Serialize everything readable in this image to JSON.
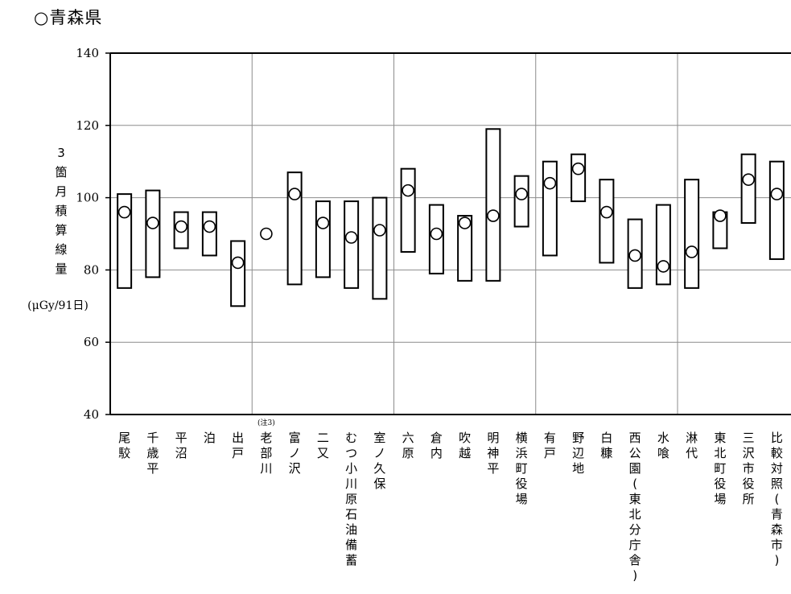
{
  "page_title": "○青森県",
  "chart_data": {
    "type": "range-bar",
    "ylim": [
      40,
      140
    ],
    "yticks": [
      "40",
      "60",
      "80",
      "100",
      "120",
      "140"
    ],
    "ylabel": "3箇月積算線量",
    "yunit": "(μGy/91日)",
    "grid": true,
    "categories": [
      "尾駮",
      "千歳平",
      "平沼",
      "泊",
      "出戸",
      "老部川",
      "富ノ沢",
      "二又",
      "むつ小川原石油備蓄",
      "室ノ久保",
      "六原",
      "倉内",
      "吹越",
      "明神平",
      "横浜町役場",
      "有戸",
      "野辺地",
      "白糠",
      "西公園(東北分庁舎)",
      "水喰",
      "淋代",
      "東北町役場",
      "三沢市役所",
      "比較対照(青森市)"
    ],
    "category_note": {
      "index": 5,
      "text": "(注3)"
    },
    "series": [
      {
        "values": [
          96,
          93,
          92,
          92,
          82,
          90,
          101,
          93,
          89,
          91,
          102,
          90,
          93,
          95,
          101,
          104,
          108,
          96,
          84,
          81,
          85,
          95,
          105,
          101
        ]
      },
      {
        "min": [
          75,
          78,
          86,
          84,
          70,
          null,
          76,
          78,
          75,
          72,
          85,
          79,
          77,
          77,
          92,
          84,
          99,
          82,
          75,
          76,
          75,
          86,
          93,
          83
        ],
        "max": [
          101,
          102,
          96,
          96,
          88,
          null,
          107,
          99,
          99,
          100,
          108,
          98,
          95,
          119,
          106,
          110,
          112,
          105,
          94,
          98,
          105,
          96,
          112,
          110
        ]
      }
    ],
    "group_separators_after": [
      4,
      9,
      14,
      19
    ]
  }
}
